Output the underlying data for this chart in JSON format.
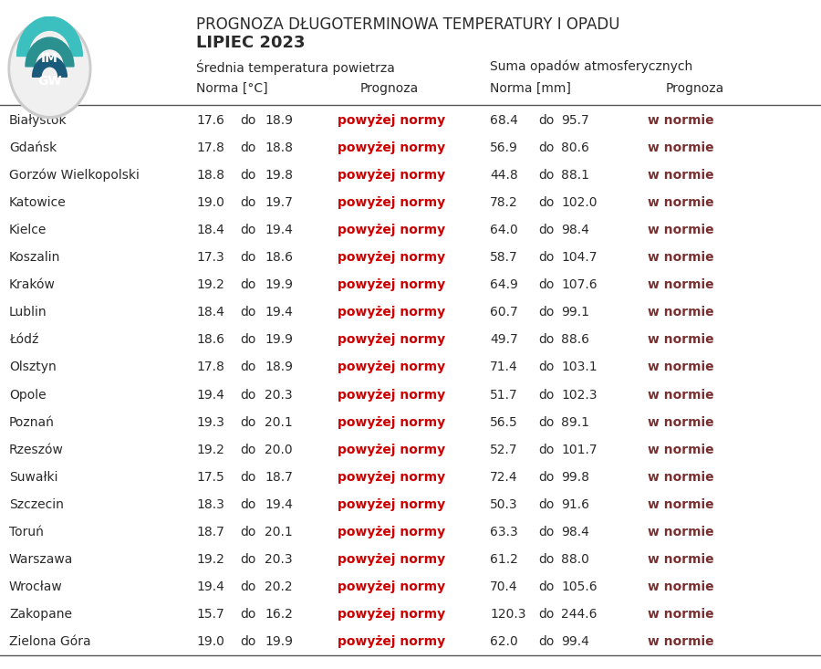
{
  "title_line1": "PROGNOZA DŁUGOTERMINOWA TEMPERATURY I OPADU",
  "title_line2": "LIPIEC 2023",
  "subtitle_temp": "Średnia temperatura powietrza",
  "subtitle_precip": "Suma opadów atmosferycznych",
  "col_header_norma_temp": "Norma [°C]",
  "col_header_prognoza": "Prognoza",
  "col_header_norma_precip": "Norma [mm]",
  "col_header_prognoza2": "Prognoza",
  "cities": [
    "Białystok",
    "Gdańsk",
    "Gorzów Wielkopolski",
    "Katowice",
    "Kielce",
    "Koszalin",
    "Kraków",
    "Lublin",
    "Łódź",
    "Olsztyn",
    "Opole",
    "Poznań",
    "Rzeszów",
    "Suwałki",
    "Szczecin",
    "Toruń",
    "Warszawa",
    "Wrocław",
    "Zakopane",
    "Zielona Góra"
  ],
  "temp_norma_low": [
    17.6,
    17.8,
    18.8,
    19.0,
    18.4,
    17.3,
    19.2,
    18.4,
    18.6,
    17.8,
    19.4,
    19.3,
    19.2,
    17.5,
    18.3,
    18.7,
    19.2,
    19.4,
    15.7,
    19.0
  ],
  "temp_norma_high": [
    18.9,
    18.8,
    19.8,
    19.7,
    19.4,
    18.6,
    19.9,
    19.4,
    19.9,
    18.9,
    20.3,
    20.1,
    20.0,
    18.7,
    19.4,
    20.1,
    20.3,
    20.2,
    16.2,
    19.9
  ],
  "temp_prognoza": [
    "powyżej normy",
    "powyżej normy",
    "powyżej normy",
    "powyżej normy",
    "powyżej normy",
    "powyżej normy",
    "powyżej normy",
    "powyżej normy",
    "powyżej normy",
    "powyżej normy",
    "powyżej normy",
    "powyżej normy",
    "powyżej normy",
    "powyżej normy",
    "powyżej normy",
    "powyżej normy",
    "powyżej normy",
    "powyżej normy",
    "powyżej normy",
    "powyżej normy"
  ],
  "precip_norma_low": [
    68.4,
    56.9,
    44.8,
    78.2,
    64.0,
    58.7,
    64.9,
    60.7,
    49.7,
    71.4,
    51.7,
    56.5,
    52.7,
    72.4,
    50.3,
    63.3,
    61.2,
    70.4,
    120.3,
    62.0
  ],
  "precip_norma_high": [
    95.7,
    80.6,
    88.1,
    102.0,
    98.4,
    104.7,
    107.6,
    99.1,
    88.6,
    103.1,
    102.3,
    89.1,
    101.7,
    99.8,
    91.6,
    98.4,
    88.0,
    105.6,
    244.6,
    99.4
  ],
  "precip_prognoza": [
    "w normie",
    "w normie",
    "w normie",
    "w normie",
    "w normie",
    "w normie",
    "w normie",
    "w normie",
    "w normie",
    "w normie",
    "w normie",
    "w normie",
    "w normie",
    "w normie",
    "w normie",
    "w normie",
    "w normie",
    "w normie",
    "w normie",
    "w normie"
  ],
  "bg_color": "#ffffff",
  "text_color": "#2a2a2a",
  "gray_color": "#555555",
  "red_color": "#cc0000",
  "wnormie_color": "#7a3030",
  "line_color": "#555555",
  "logo_outer_color": "#cccccc",
  "logo_bg_color": "#f0f0f0",
  "logo_teal1": "#3bbfbf",
  "logo_teal2": "#2a9090",
  "logo_dark": "#1a5a7a",
  "logo_text_color": "#1a1a1a"
}
